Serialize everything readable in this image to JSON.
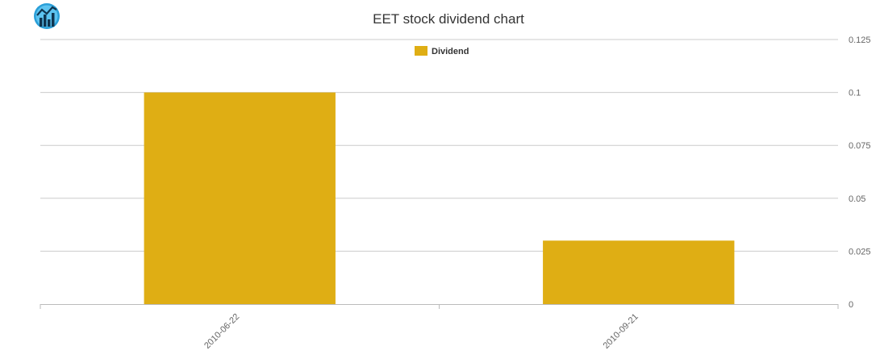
{
  "chart_data": {
    "type": "bar",
    "title": "EET stock dividend chart",
    "categories": [
      "2010-06-22",
      "2010-09-21"
    ],
    "series": [
      {
        "name": "Dividend",
        "values": [
          0.1,
          0.03
        ],
        "color": "#dfae14"
      }
    ],
    "ylim": [
      0,
      0.125
    ],
    "yticks": [
      "0",
      "0.025",
      "0.05",
      "0.075",
      "0.1",
      "0.125"
    ],
    "ytick_values": [
      0,
      0.025,
      0.05,
      0.075,
      0.1,
      0.125
    ],
    "y_axis_side": "right",
    "grid": true,
    "legend": "top-center",
    "logo_icon": "chart-logo-icon"
  }
}
